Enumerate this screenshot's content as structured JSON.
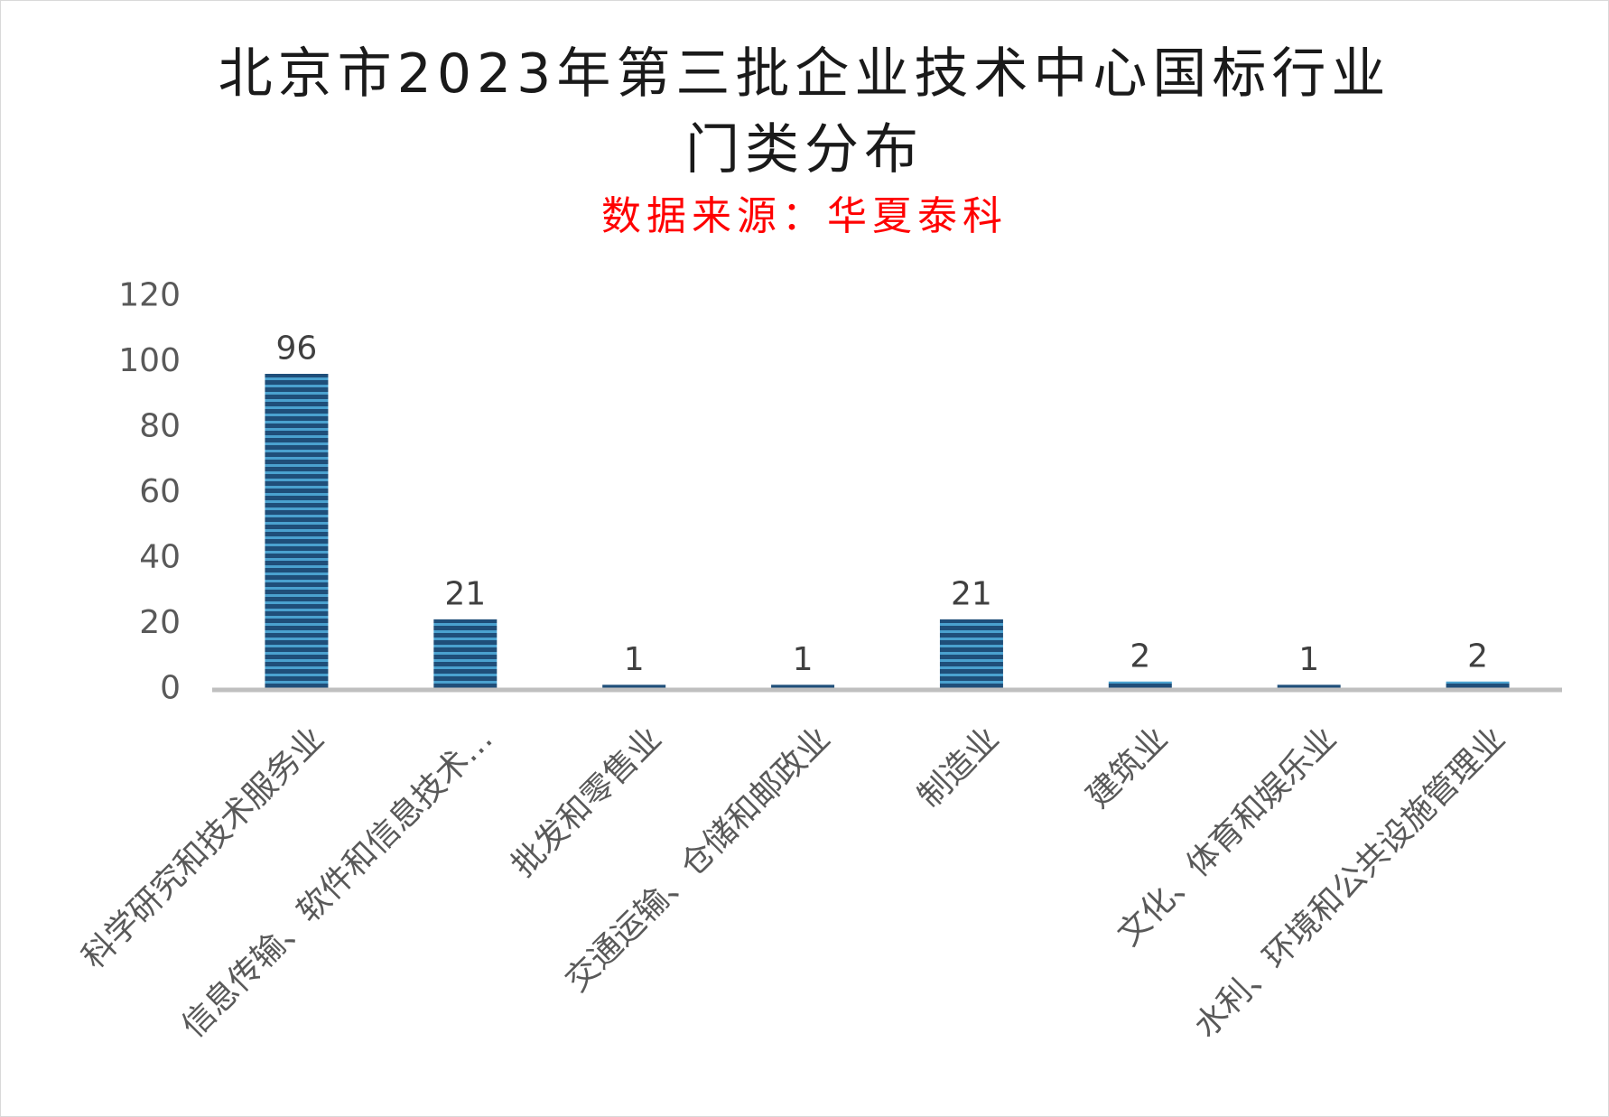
{
  "title_lines": [
    "北京市2023年第三批企业技术中心国标行业",
    "门类分布"
  ],
  "subtitle": "数据来源：华夏泰科",
  "colors": {
    "bar_dark": "#1f4e79",
    "bar_light": "#4aa1cf",
    "axis": "#bfbfbf",
    "subtitle": "#ff0000"
  },
  "chart_data": {
    "type": "bar",
    "title": "北京市2023年第三批企业技术中心国标行业门类分布",
    "subtitle": "数据来源：华夏泰科",
    "categories": [
      "科学研究和技术服务业",
      "信息传输、软件和信息技术…",
      "批发和零售业",
      "交通运输、仓储和邮政业",
      "制造业",
      "建筑业",
      "文化、体育和娱乐业",
      "水利、环境和公共设施管理业"
    ],
    "values": [
      96,
      21,
      1,
      1,
      21,
      2,
      1,
      2
    ],
    "data_labels": [
      "96",
      "21",
      "1",
      "1",
      "21",
      "2",
      "1",
      "2"
    ],
    "ylim": [
      0,
      120
    ],
    "y_ticks": [
      0,
      20,
      40,
      60,
      80,
      100,
      120
    ],
    "y_tick_labels": [
      "0",
      "20",
      "40",
      "60",
      "80",
      "100",
      "120"
    ],
    "xlabel": "",
    "ylabel": "",
    "grid": false,
    "legend": "none"
  }
}
